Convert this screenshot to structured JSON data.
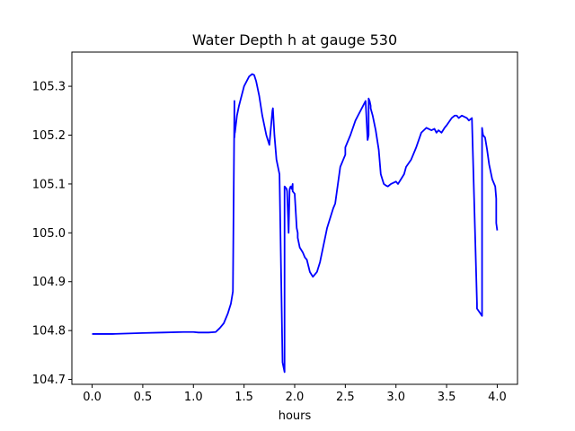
{
  "chart_data": {
    "type": "line",
    "title": "Water Depth h at gauge 530",
    "xlabel": "hours",
    "ylabel": "",
    "xlim": [
      -0.2,
      4.2
    ],
    "ylim": [
      104.69,
      105.37
    ],
    "xticks": [
      0.0,
      0.5,
      1.0,
      1.5,
      2.0,
      2.5,
      3.0,
      3.5,
      4.0
    ],
    "xtick_labels": [
      "0.0",
      "0.5",
      "1.0",
      "1.5",
      "2.0",
      "2.5",
      "3.0",
      "3.5",
      "4.0"
    ],
    "yticks": [
      104.7,
      104.8,
      104.9,
      105.0,
      105.1,
      105.2,
      105.3
    ],
    "ytick_labels": [
      "104.7",
      "104.8",
      "104.9",
      "105.0",
      "105.1",
      "105.2",
      "105.3"
    ],
    "grid": false,
    "series": [
      {
        "color": "#0000ff",
        "x": [
          0.0,
          0.2,
          0.5,
          0.7,
          0.9,
          1.0,
          1.05,
          1.15,
          1.22,
          1.26,
          1.3,
          1.34,
          1.37,
          1.39,
          1.405,
          1.405,
          1.41,
          1.41,
          1.43,
          1.45,
          1.5,
          1.55,
          1.58,
          1.6,
          1.62,
          1.63,
          1.65,
          1.68,
          1.72,
          1.75,
          1.78,
          1.785,
          1.8,
          1.82,
          1.85,
          1.88,
          1.9,
          1.9,
          1.92,
          1.925,
          1.94,
          1.95,
          1.96,
          1.97,
          1.98,
          1.98,
          2.0,
          2.02,
          2.03,
          2.03,
          2.05,
          2.08,
          2.1,
          2.12,
          2.15,
          2.18,
          2.2,
          2.22,
          2.25,
          2.28,
          2.3,
          2.32,
          2.35,
          2.38,
          2.4,
          2.45,
          2.48,
          2.5,
          2.5,
          2.55,
          2.6,
          2.65,
          2.7,
          2.72,
          2.73,
          2.73,
          2.74,
          2.75,
          2.75,
          2.77,
          2.8,
          2.83,
          2.85,
          2.88,
          2.9,
          2.92,
          2.95,
          3.0,
          3.02,
          3.05,
          3.08,
          3.1,
          3.15,
          3.2,
          3.25,
          3.3,
          3.35,
          3.38,
          3.4,
          3.42,
          3.45,
          3.48,
          3.5,
          3.55,
          3.58,
          3.6,
          3.62,
          3.65,
          3.7,
          3.72,
          3.75,
          3.8,
          3.8,
          3.85,
          3.85,
          3.86,
          3.88,
          3.9,
          3.92,
          3.95,
          3.98,
          3.99,
          3.99,
          4.0
        ],
        "y": [
          104.793,
          104.793,
          104.795,
          104.796,
          104.797,
          104.797,
          104.796,
          104.796,
          104.797,
          104.805,
          104.815,
          104.835,
          104.855,
          104.88,
          105.27,
          105.195,
          105.21,
          105.205,
          105.24,
          105.26,
          105.3,
          105.32,
          105.325,
          105.323,
          105.31,
          105.3,
          105.28,
          105.24,
          105.2,
          105.18,
          105.25,
          105.255,
          105.2,
          105.15,
          105.12,
          104.735,
          104.715,
          105.095,
          105.09,
          105.085,
          105.0,
          105.09,
          105.095,
          105.09,
          105.1,
          105.085,
          105.08,
          105.01,
          105.0,
          104.99,
          104.97,
          104.96,
          104.95,
          104.945,
          104.92,
          104.91,
          104.915,
          104.92,
          104.94,
          104.97,
          104.99,
          105.01,
          105.03,
          105.05,
          105.06,
          105.135,
          105.15,
          105.16,
          105.175,
          105.2,
          105.23,
          105.25,
          105.27,
          105.19,
          105.2,
          105.275,
          105.27,
          105.26,
          105.255,
          105.24,
          105.21,
          105.17,
          105.12,
          105.1,
          105.097,
          105.095,
          105.1,
          105.105,
          105.1,
          105.11,
          105.12,
          105.135,
          105.15,
          105.175,
          105.205,
          105.215,
          105.21,
          105.213,
          105.205,
          105.21,
          105.205,
          105.215,
          105.22,
          105.235,
          105.24,
          105.24,
          105.235,
          105.24,
          105.235,
          105.23,
          105.235,
          104.855,
          104.845,
          104.83,
          105.215,
          105.2,
          105.195,
          105.17,
          105.14,
          105.11,
          105.095,
          105.07,
          105.02,
          105.005
        ]
      }
    ]
  }
}
